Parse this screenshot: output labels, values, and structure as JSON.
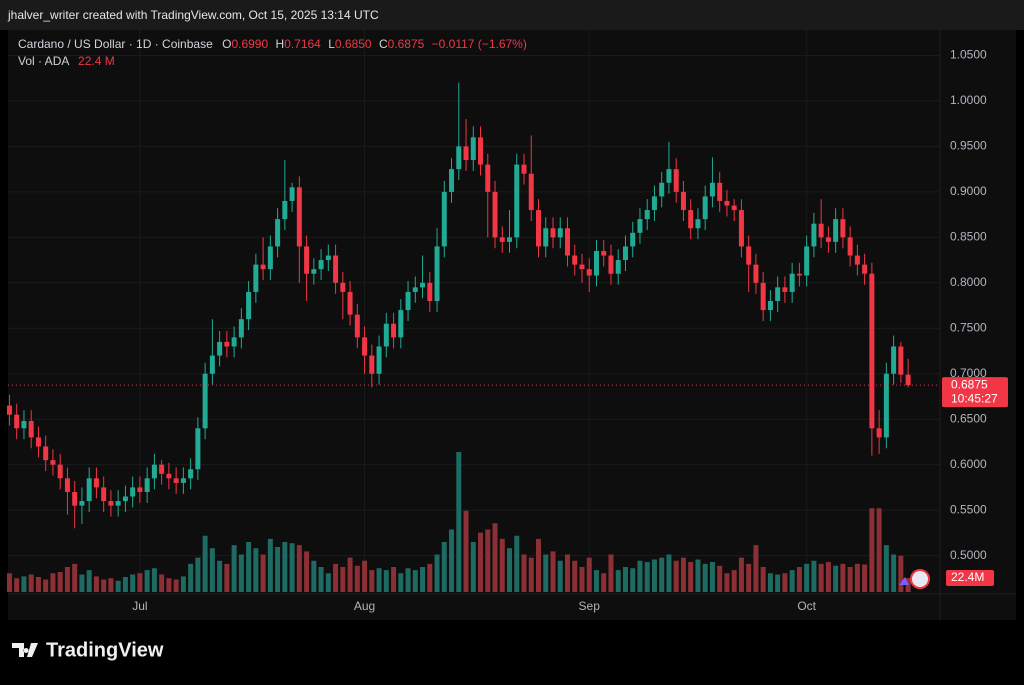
{
  "header": {
    "watermark": "jhalver_writer created with TradingView.com, Oct 15, 2025 13:14 UTC"
  },
  "footer": {
    "brand": "TradingView"
  },
  "chart_data": {
    "type": "candlestick",
    "title": "Cardano / US Dollar · 1D · Coinbase",
    "legend": {
      "o_label": "O",
      "o": "0.6990",
      "h_label": "H",
      "h": "0.7164",
      "l_label": "L",
      "l": "0.6850",
      "c_label": "C",
      "c": "0.6875",
      "change": "−0.0117 (−1.67%)",
      "vol_label": "Vol · ADA",
      "vol": "22.4 M"
    },
    "countdown": "10:45:27",
    "volume_label": "22.4M",
    "up_color": "#22ab94",
    "down_color": "#f23645",
    "up_volume_color": "#1d6b62",
    "down_volume_color": "#8c3035",
    "grid": true,
    "ylim": [
      0.46,
      1.078
    ],
    "yticks": [
      {
        "value": 0.5,
        "label": "0.5000"
      },
      {
        "value": 0.55,
        "label": "0.5500"
      },
      {
        "value": 0.6,
        "label": "0.6000"
      },
      {
        "value": 0.65,
        "label": "0.6500"
      },
      {
        "value": 0.7,
        "label": "0.7000"
      },
      {
        "value": 0.75,
        "label": "0.7500"
      },
      {
        "value": 0.8,
        "label": "0.8000"
      },
      {
        "value": 0.85,
        "label": "0.8500"
      },
      {
        "value": 0.9,
        "label": "0.9000"
      },
      {
        "value": 0.95,
        "label": "0.9500"
      },
      {
        "value": 1.0,
        "label": "1.0000"
      },
      {
        "value": 1.05,
        "label": "1.0500"
      }
    ],
    "xlim": [
      -0.2,
      128.4
    ],
    "xticks": [
      {
        "value": 18,
        "label": "Jul"
      },
      {
        "value": 49,
        "label": "Aug"
      },
      {
        "value": 80,
        "label": "Sep"
      },
      {
        "value": 110,
        "label": "Oct"
      }
    ],
    "volume_lim": [
      0,
      240
    ],
    "x": [
      0,
      1,
      2,
      3,
      4,
      5,
      6,
      7,
      8,
      9,
      10,
      11,
      12,
      13,
      14,
      15,
      16,
      17,
      18,
      19,
      20,
      21,
      22,
      23,
      24,
      25,
      26,
      27,
      28,
      29,
      30,
      31,
      32,
      33,
      34,
      35,
      36,
      37,
      38,
      39,
      40,
      41,
      42,
      43,
      44,
      45,
      46,
      47,
      48,
      49,
      50,
      51,
      52,
      53,
      54,
      55,
      56,
      57,
      58,
      59,
      60,
      61,
      62,
      63,
      64,
      65,
      66,
      67,
      68,
      69,
      70,
      71,
      72,
      73,
      74,
      75,
      76,
      77,
      78,
      79,
      80,
      81,
      82,
      83,
      84,
      85,
      86,
      87,
      88,
      89,
      90,
      91,
      92,
      93,
      94,
      95,
      96,
      97,
      98,
      99,
      100,
      101,
      102,
      103,
      104,
      105,
      106,
      107,
      108,
      109,
      110,
      111,
      112,
      113,
      114,
      115,
      116,
      117,
      118,
      119,
      120,
      121,
      122,
      123,
      124
    ],
    "open": [
      0.665,
      0.655,
      0.64,
      0.648,
      0.63,
      0.62,
      0.605,
      0.6,
      0.585,
      0.57,
      0.555,
      0.56,
      0.585,
      0.575,
      0.56,
      0.555,
      0.56,
      0.565,
      0.575,
      0.57,
      0.585,
      0.6,
      0.59,
      0.585,
      0.58,
      0.585,
      0.595,
      0.64,
      0.7,
      0.72,
      0.735,
      0.73,
      0.74,
      0.76,
      0.79,
      0.82,
      0.815,
      0.84,
      0.87,
      0.89,
      0.905,
      0.84,
      0.81,
      0.815,
      0.825,
      0.83,
      0.8,
      0.79,
      0.765,
      0.74,
      0.72,
      0.7,
      0.73,
      0.755,
      0.74,
      0.77,
      0.79,
      0.795,
      0.8,
      0.78,
      0.84,
      0.9,
      0.925,
      0.95,
      0.935,
      0.96,
      0.93,
      0.9,
      0.85,
      0.845,
      0.85,
      0.93,
      0.92,
      0.88,
      0.84,
      0.86,
      0.85,
      0.86,
      0.83,
      0.82,
      0.815,
      0.808,
      0.835,
      0.83,
      0.81,
      0.825,
      0.84,
      0.855,
      0.87,
      0.88,
      0.895,
      0.91,
      0.925,
      0.9,
      0.88,
      0.86,
      0.87,
      0.895,
      0.91,
      0.89,
      0.885,
      0.88,
      0.84,
      0.82,
      0.8,
      0.77,
      0.78,
      0.795,
      0.79,
      0.81,
      0.808,
      0.84,
      0.865,
      0.85,
      0.845,
      0.87,
      0.85,
      0.83,
      0.82,
      0.81,
      0.64,
      0.63,
      0.7,
      0.73,
      0.699
    ],
    "high": [
      0.677,
      0.667,
      0.66,
      0.66,
      0.642,
      0.632,
      0.617,
      0.612,
      0.597,
      0.582,
      0.575,
      0.597,
      0.597,
      0.587,
      0.572,
      0.572,
      0.577,
      0.587,
      0.587,
      0.597,
      0.612,
      0.605,
      0.602,
      0.597,
      0.597,
      0.607,
      0.652,
      0.712,
      0.76,
      0.747,
      0.747,
      0.752,
      0.772,
      0.802,
      0.832,
      0.85,
      0.852,
      0.882,
      0.935,
      0.91,
      0.917,
      0.852,
      0.827,
      0.837,
      0.842,
      0.842,
      0.812,
      0.802,
      0.777,
      0.752,
      0.732,
      0.742,
      0.767,
      0.767,
      0.782,
      0.802,
      0.807,
      0.83,
      0.812,
      0.86,
      0.912,
      0.937,
      1.02,
      0.98,
      0.972,
      0.972,
      0.942,
      0.912,
      0.862,
      0.88,
      0.942,
      0.942,
      0.962,
      0.892,
      0.872,
      0.872,
      0.872,
      0.872,
      0.842,
      0.832,
      0.827,
      0.847,
      0.847,
      0.842,
      0.837,
      0.852,
      0.867,
      0.882,
      0.892,
      0.907,
      0.922,
      0.955,
      0.937,
      0.912,
      0.892,
      0.882,
      0.907,
      0.938,
      0.922,
      0.902,
      0.892,
      0.892,
      0.852,
      0.832,
      0.812,
      0.792,
      0.807,
      0.807,
      0.822,
      0.822,
      0.852,
      0.877,
      0.892,
      0.862,
      0.882,
      0.882,
      0.862,
      0.842,
      0.832,
      0.822,
      0.66,
      0.712,
      0.742,
      0.735,
      0.7164
    ],
    "low": [
      0.643,
      0.628,
      0.628,
      0.618,
      0.608,
      0.593,
      0.588,
      0.573,
      0.545,
      0.53,
      0.535,
      0.548,
      0.563,
      0.548,
      0.543,
      0.543,
      0.548,
      0.553,
      0.558,
      0.558,
      0.573,
      0.578,
      0.573,
      0.568,
      0.568,
      0.573,
      0.583,
      0.628,
      0.688,
      0.708,
      0.718,
      0.718,
      0.728,
      0.748,
      0.778,
      0.803,
      0.803,
      0.828,
      0.858,
      0.878,
      0.8,
      0.78,
      0.798,
      0.803,
      0.813,
      0.788,
      0.76,
      0.753,
      0.728,
      0.7,
      0.685,
      0.688,
      0.718,
      0.728,
      0.728,
      0.758,
      0.778,
      0.783,
      0.768,
      0.768,
      0.828,
      0.888,
      0.913,
      0.923,
      0.923,
      0.918,
      0.85,
      0.838,
      0.833,
      0.833,
      0.838,
      0.908,
      0.868,
      0.828,
      0.828,
      0.838,
      0.838,
      0.818,
      0.808,
      0.8,
      0.79,
      0.796,
      0.818,
      0.798,
      0.798,
      0.813,
      0.828,
      0.843,
      0.858,
      0.868,
      0.883,
      0.898,
      0.888,
      0.868,
      0.848,
      0.848,
      0.858,
      0.883,
      0.878,
      0.873,
      0.868,
      0.828,
      0.79,
      0.788,
      0.758,
      0.758,
      0.768,
      0.778,
      0.778,
      0.796,
      0.796,
      0.828,
      0.838,
      0.833,
      0.833,
      0.838,
      0.818,
      0.808,
      0.798,
      0.61,
      0.612,
      0.618,
      0.688,
      0.69,
      0.685
    ],
    "close": [
      0.655,
      0.64,
      0.648,
      0.63,
      0.62,
      0.605,
      0.6,
      0.585,
      0.57,
      0.555,
      0.56,
      0.585,
      0.575,
      0.56,
      0.555,
      0.56,
      0.565,
      0.575,
      0.57,
      0.585,
      0.6,
      0.59,
      0.585,
      0.58,
      0.585,
      0.595,
      0.64,
      0.7,
      0.72,
      0.735,
      0.73,
      0.74,
      0.76,
      0.79,
      0.82,
      0.815,
      0.84,
      0.87,
      0.89,
      0.905,
      0.84,
      0.81,
      0.815,
      0.825,
      0.83,
      0.8,
      0.79,
      0.765,
      0.74,
      0.72,
      0.7,
      0.73,
      0.755,
      0.74,
      0.77,
      0.79,
      0.795,
      0.8,
      0.78,
      0.84,
      0.9,
      0.925,
      0.95,
      0.935,
      0.96,
      0.93,
      0.9,
      0.85,
      0.845,
      0.85,
      0.93,
      0.92,
      0.88,
      0.84,
      0.86,
      0.85,
      0.86,
      0.83,
      0.82,
      0.815,
      0.808,
      0.835,
      0.83,
      0.81,
      0.825,
      0.84,
      0.855,
      0.87,
      0.88,
      0.895,
      0.91,
      0.925,
      0.9,
      0.88,
      0.86,
      0.87,
      0.895,
      0.91,
      0.89,
      0.885,
      0.88,
      0.84,
      0.82,
      0.8,
      0.77,
      0.78,
      0.795,
      0.79,
      0.81,
      0.808,
      0.84,
      0.865,
      0.85,
      0.845,
      0.87,
      0.85,
      0.83,
      0.82,
      0.81,
      0.64,
      0.63,
      0.7,
      0.73,
      0.699,
      0.6875
    ],
    "volume": [
      30,
      22,
      25,
      28,
      24,
      20,
      30,
      32,
      40,
      45,
      28,
      35,
      25,
      20,
      22,
      18,
      24,
      28,
      30,
      35,
      38,
      28,
      22,
      20,
      25,
      45,
      55,
      90,
      70,
      50,
      45,
      75,
      60,
      80,
      70,
      60,
      85,
      72,
      80,
      78,
      75,
      65,
      50,
      40,
      30,
      45,
      40,
      55,
      42,
      50,
      35,
      38,
      35,
      40,
      30,
      38,
      35,
      40,
      45,
      60,
      80,
      100,
      224,
      130,
      80,
      95,
      100,
      110,
      85,
      70,
      90,
      60,
      55,
      85,
      60,
      65,
      50,
      60,
      50,
      40,
      55,
      35,
      30,
      60,
      35,
      40,
      38,
      50,
      48,
      52,
      55,
      60,
      50,
      55,
      48,
      52,
      45,
      48,
      42,
      30,
      35,
      55,
      45,
      75,
      40,
      30,
      28,
      30,
      35,
      40,
      45,
      50,
      45,
      48,
      42,
      45,
      40,
      45,
      44,
      134,
      134,
      75,
      60,
      58,
      22.4
    ]
  }
}
